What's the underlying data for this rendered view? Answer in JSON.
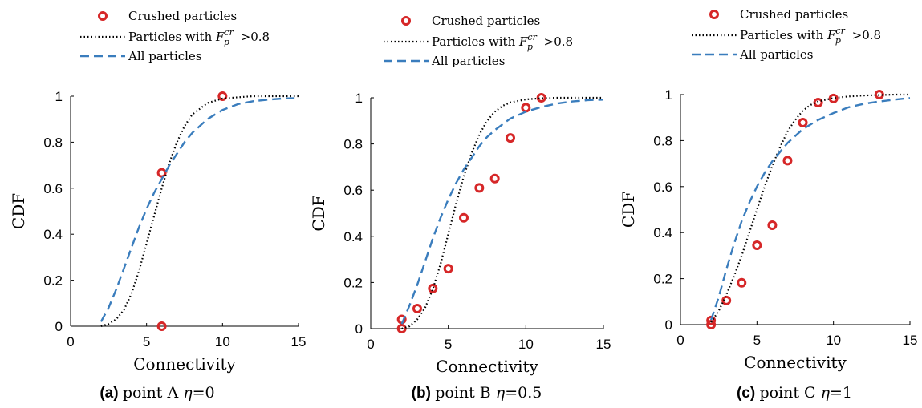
{
  "legend": {
    "crushed": "Crushed particles",
    "fp_prefix": "Particles with",
    "fp_F": "F",
    "fp_sub": "p",
    "fp_sup": "cr",
    "fp_suffix": ">0.8",
    "all": "All particles"
  },
  "colors": {
    "marker": "#d62728",
    "dotted": "#000000",
    "dashed": "#3a7dbd"
  },
  "chart_data": [
    {
      "type": "scatter",
      "caption_tag": "(a)",
      "caption_text": "point A",
      "caption_eta": "η",
      "caption_value": "=0",
      "xlabel": "Connectivity",
      "ylabel": "CDF",
      "xlim": [
        0,
        15
      ],
      "ylim": [
        0,
        1
      ],
      "xticks": [
        0,
        5,
        10,
        15
      ],
      "yticks": [
        0,
        0.2,
        0.4,
        0.6,
        0.8,
        1
      ],
      "series": [
        {
          "name": "Crushed particles",
          "style": "marker",
          "x": [
            6,
            6,
            10
          ],
          "y": [
            0,
            0.667,
            1.0
          ]
        },
        {
          "name": "Particles with Fp^cr >0.8",
          "style": "dotted",
          "x": [
            2,
            2.5,
            3,
            3.5,
            4,
            4.5,
            5,
            5.5,
            6,
            6.5,
            7,
            7.5,
            8,
            9,
            10,
            11,
            12,
            13,
            14,
            15
          ],
          "y": [
            0,
            0.01,
            0.03,
            0.07,
            0.14,
            0.24,
            0.36,
            0.48,
            0.6,
            0.71,
            0.8,
            0.87,
            0.92,
            0.97,
            0.99,
            0.995,
            1.0,
            1.0,
            1.0,
            1.0
          ]
        },
        {
          "name": "All particles",
          "style": "dashed",
          "x": [
            2,
            2.5,
            3,
            3.5,
            4,
            4.5,
            5,
            5.5,
            6,
            6.5,
            7,
            7.5,
            8,
            9,
            10,
            11,
            12,
            13,
            14,
            15
          ],
          "y": [
            0.02,
            0.08,
            0.16,
            0.25,
            0.34,
            0.43,
            0.51,
            0.58,
            0.64,
            0.7,
            0.75,
            0.8,
            0.84,
            0.9,
            0.94,
            0.965,
            0.978,
            0.985,
            0.99,
            0.992
          ]
        }
      ]
    },
    {
      "type": "scatter",
      "caption_tag": "(b)",
      "caption_text": "point B",
      "caption_eta": "η",
      "caption_value": "=0.5",
      "xlabel": "Connectivity",
      "ylabel": "CDF",
      "xlim": [
        0,
        15
      ],
      "ylim": [
        0,
        1
      ],
      "xticks": [
        0,
        5,
        10,
        15
      ],
      "yticks": [
        0,
        0.2,
        0.4,
        0.6,
        0.8,
        1
      ],
      "series": [
        {
          "name": "Crushed particles",
          "style": "marker",
          "x": [
            2,
            2,
            3,
            4,
            5,
            6,
            7,
            8,
            9,
            10,
            11
          ],
          "y": [
            0.0,
            0.04,
            0.087,
            0.174,
            0.26,
            0.48,
            0.61,
            0.65,
            0.826,
            0.957,
            1.0
          ]
        },
        {
          "name": "Particles with Fp^cr >0.8",
          "style": "dotted",
          "x": [
            2,
            2.5,
            3,
            3.5,
            4,
            4.5,
            5,
            5.5,
            6,
            6.5,
            7,
            7.5,
            8,
            8.5,
            9,
            10,
            11,
            12,
            13,
            14,
            15
          ],
          "y": [
            0,
            0.01,
            0.04,
            0.09,
            0.17,
            0.28,
            0.41,
            0.54,
            0.66,
            0.76,
            0.84,
            0.9,
            0.94,
            0.965,
            0.98,
            0.993,
            0.998,
            1.0,
            1.0,
            1.0,
            1.0
          ]
        },
        {
          "name": "All particles",
          "style": "dashed",
          "x": [
            2,
            2.5,
            3,
            3.5,
            4,
            4.5,
            5,
            5.5,
            6,
            6.5,
            7,
            7.5,
            8,
            9,
            10,
            11,
            12,
            13,
            14,
            15
          ],
          "y": [
            0.02,
            0.1,
            0.19,
            0.29,
            0.39,
            0.48,
            0.56,
            0.63,
            0.69,
            0.74,
            0.79,
            0.83,
            0.86,
            0.91,
            0.94,
            0.96,
            0.975,
            0.984,
            0.99,
            0.992
          ]
        }
      ]
    },
    {
      "type": "scatter",
      "caption_tag": "(c)",
      "caption_text": "point C",
      "caption_eta": "η",
      "caption_value": "=1",
      "xlabel": "Connectivity",
      "ylabel": "CDF",
      "xlim": [
        0,
        15
      ],
      "ylim": [
        0,
        1
      ],
      "xticks": [
        0,
        5,
        10,
        15
      ],
      "yticks": [
        0,
        0.2,
        0.4,
        0.6,
        0.8,
        1
      ],
      "series": [
        {
          "name": "Crushed particles",
          "style": "marker",
          "x": [
            2,
            2,
            3,
            4,
            5,
            6,
            7,
            8,
            9,
            10,
            13
          ],
          "y": [
            0.0,
            0.018,
            0.105,
            0.182,
            0.345,
            0.432,
            0.713,
            0.878,
            0.965,
            0.983,
            1.0
          ]
        },
        {
          "name": "Particles with Fp^cr >0.8",
          "style": "dotted",
          "x": [
            2,
            2.5,
            3,
            3.5,
            4,
            4.5,
            5,
            5.5,
            6,
            6.5,
            7,
            7.5,
            8,
            8.5,
            9,
            10,
            11,
            12,
            13,
            14,
            15
          ],
          "y": [
            0.01,
            0.06,
            0.13,
            0.21,
            0.3,
            0.4,
            0.5,
            0.6,
            0.69,
            0.77,
            0.84,
            0.89,
            0.93,
            0.955,
            0.97,
            0.985,
            0.992,
            0.996,
            0.998,
            1.0,
            1.0
          ]
        },
        {
          "name": "All particles",
          "style": "dashed",
          "x": [
            2,
            2.5,
            3,
            3.5,
            4,
            4.5,
            5,
            5.5,
            6,
            6.5,
            7,
            7.5,
            8,
            9,
            10,
            11,
            12,
            13,
            14,
            15
          ],
          "y": [
            0.02,
            0.12,
            0.24,
            0.35,
            0.45,
            0.53,
            0.6,
            0.66,
            0.71,
            0.75,
            0.79,
            0.82,
            0.85,
            0.89,
            0.92,
            0.945,
            0.96,
            0.97,
            0.978,
            0.985
          ]
        }
      ]
    }
  ]
}
